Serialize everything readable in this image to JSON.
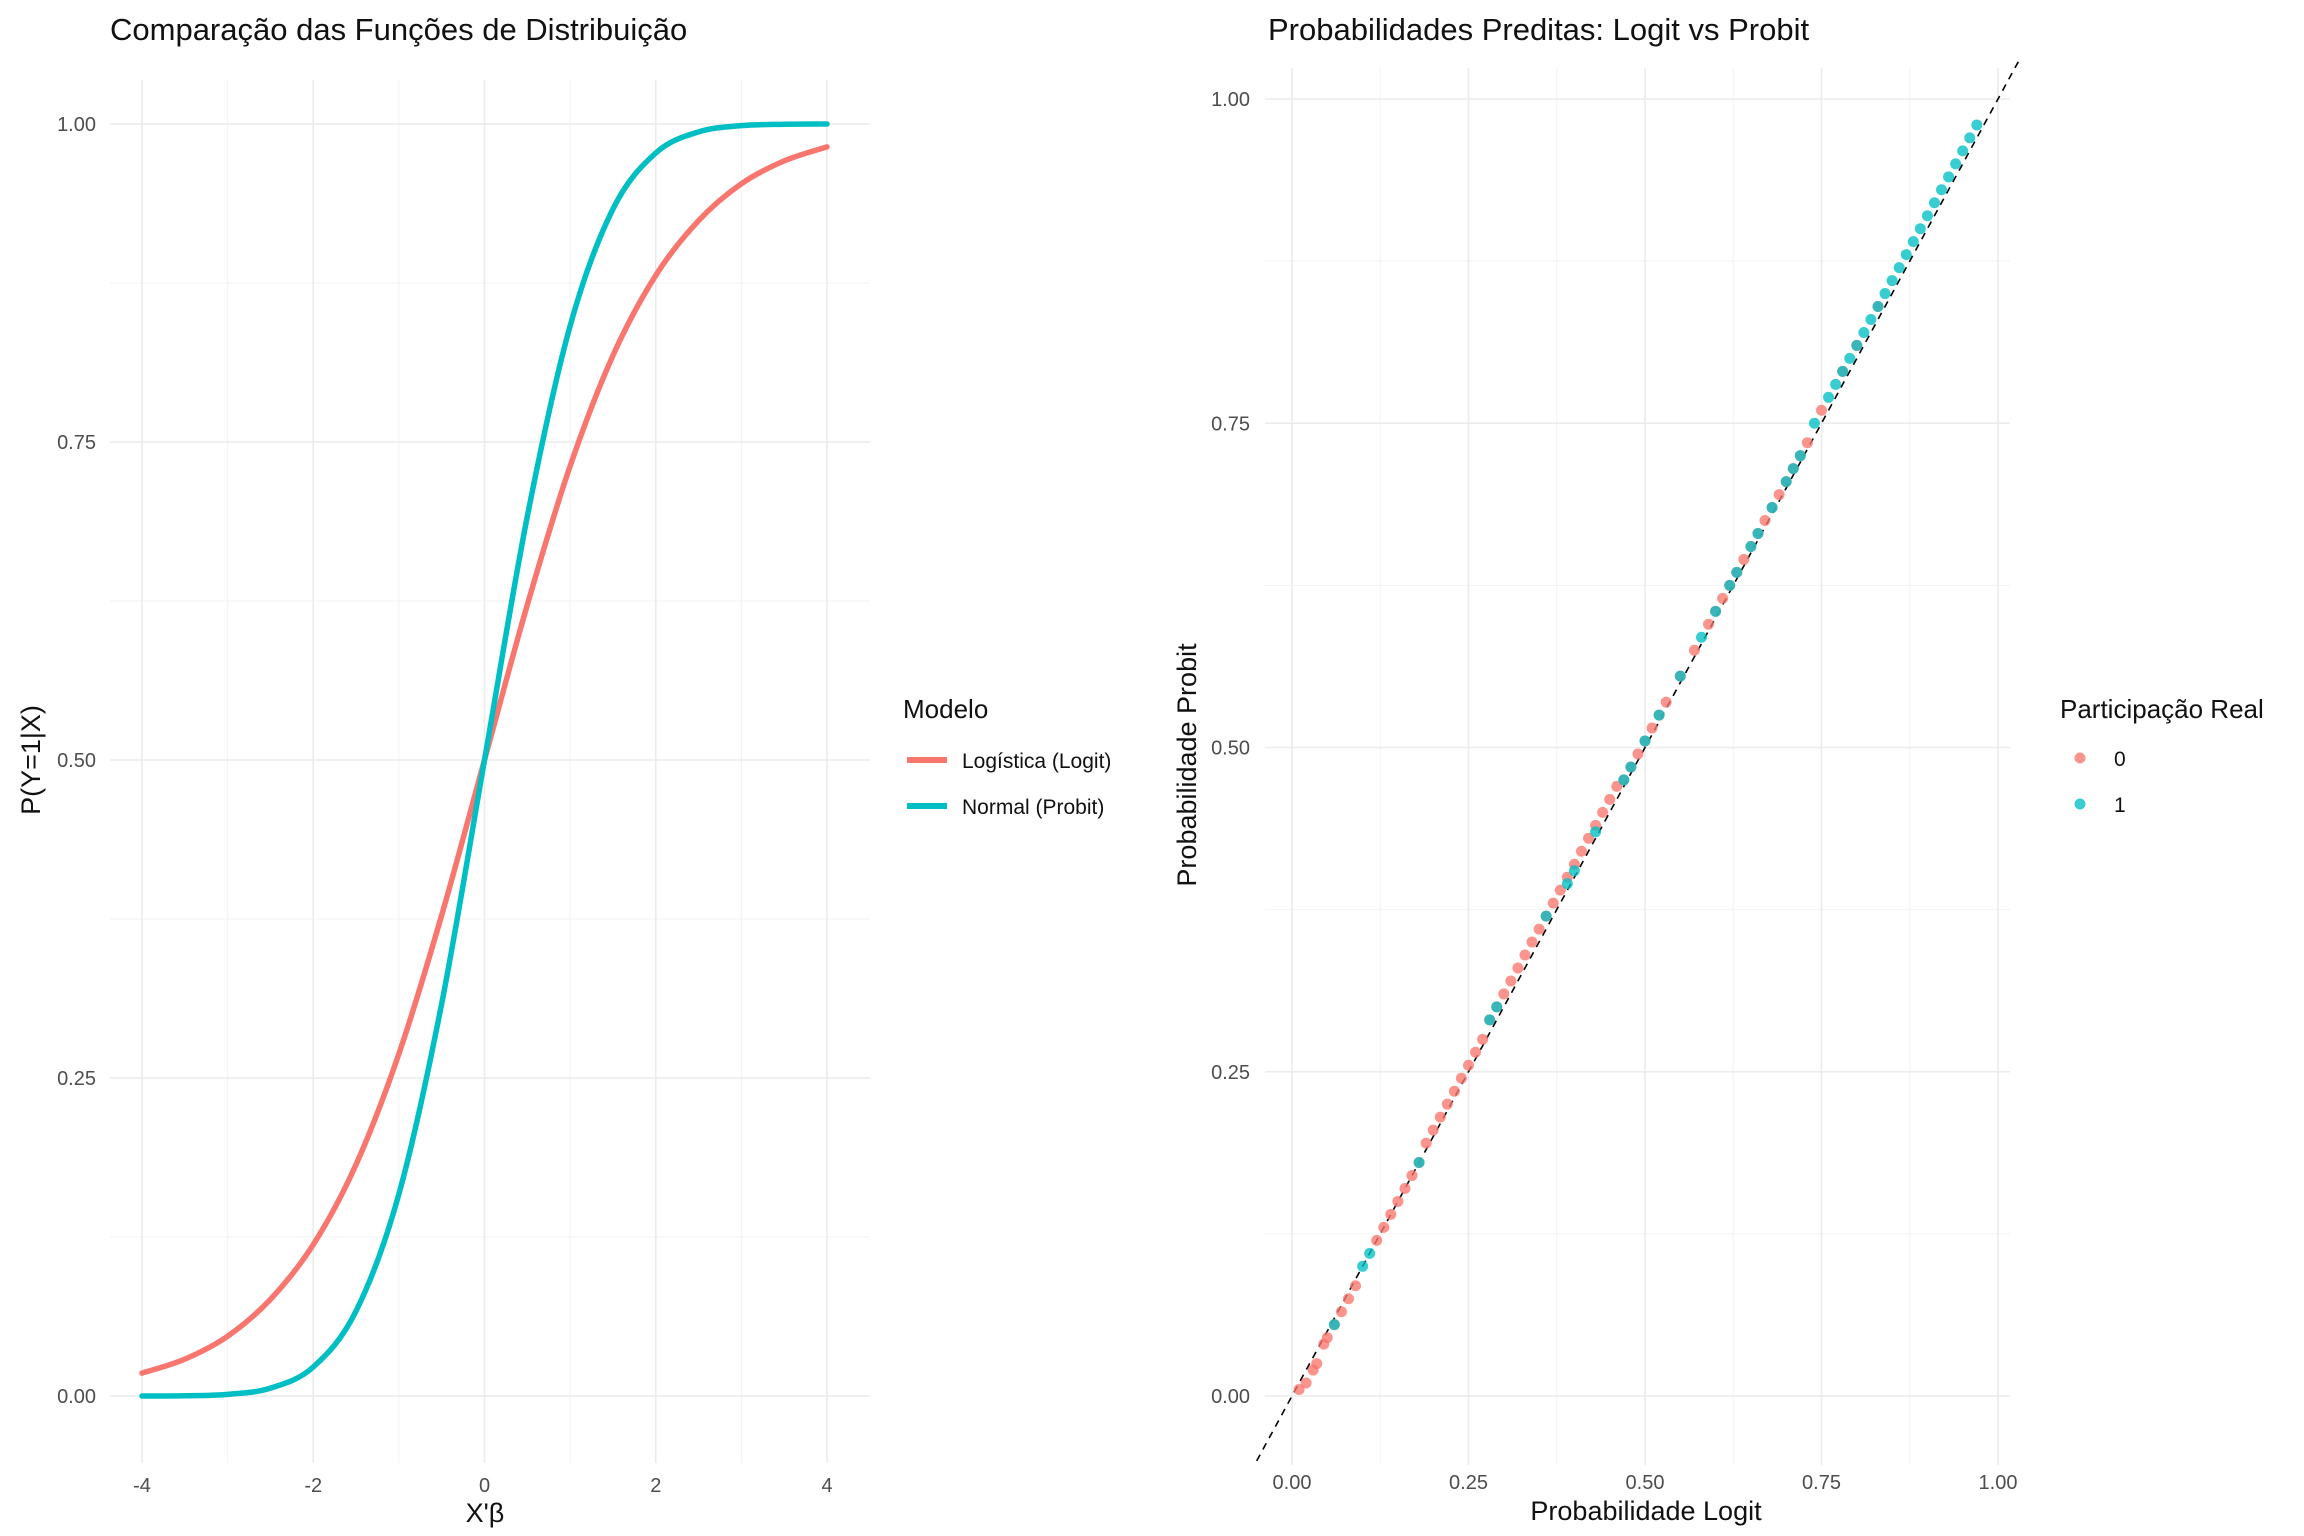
{
  "colors": {
    "logit": "#F8766D",
    "probit": "#00BFC4",
    "grid": "#EBEBEB",
    "reference_line": "#000000"
  },
  "chart_data": [
    {
      "type": "line",
      "title": "Comparação das Funções de Distribuição",
      "xlabel": "X'β",
      "ylabel": "P(Y=1|X)",
      "xlim": [
        -4,
        4
      ],
      "ylim": [
        0,
        1
      ],
      "x_ticks": [
        -4,
        -2,
        0,
        2,
        4
      ],
      "x_tick_labels": [
        "-4",
        "-2",
        "0",
        "2",
        "4"
      ],
      "y_ticks": [
        0,
        0.25,
        0.5,
        0.75,
        1
      ],
      "y_tick_labels": [
        "0.00",
        "0.25",
        "0.50",
        "0.75",
        "1.00"
      ],
      "grid": true,
      "legend": {
        "title": "Modelo",
        "position": "right"
      },
      "x": [
        -4,
        -3.5,
        -3,
        -2.5,
        -2,
        -1.5,
        -1,
        -0.5,
        0,
        0.5,
        1,
        1.5,
        2,
        2.5,
        3,
        3.5,
        4
      ],
      "series": [
        {
          "name": "Logística (Logit)",
          "color": "#F8766D",
          "values": [
            0.018,
            0.029,
            0.047,
            0.076,
            0.119,
            0.182,
            0.269,
            0.378,
            0.5,
            0.622,
            0.731,
            0.818,
            0.881,
            0.924,
            0.953,
            0.971,
            0.982
          ]
        },
        {
          "name": "Normal (Probit)",
          "color": "#00BFC4",
          "values": [
            0.0,
            0.0002,
            0.0013,
            0.0062,
            0.0228,
            0.0668,
            0.1587,
            0.3085,
            0.5,
            0.6915,
            0.8413,
            0.9332,
            0.9772,
            0.9938,
            0.9987,
            0.9998,
            1.0
          ]
        }
      ]
    },
    {
      "type": "scatter",
      "title": "Probabilidades Preditas: Logit vs Probit",
      "xlabel": "Probabilidade Logit",
      "ylabel": "Probabilidade Probit",
      "xlim": [
        0,
        1
      ],
      "ylim": [
        0,
        1
      ],
      "x_ticks": [
        0,
        0.25,
        0.5,
        0.75,
        1
      ],
      "x_tick_labels": [
        "0.00",
        "0.25",
        "0.50",
        "0.75",
        "1.00"
      ],
      "y_ticks": [
        0,
        0.25,
        0.5,
        0.75,
        1
      ],
      "y_tick_labels": [
        "0.00",
        "0.25",
        "0.50",
        "0.75",
        "1.00"
      ],
      "grid": true,
      "reference_line": {
        "type": "identity",
        "style": "dashed",
        "color": "#000000"
      },
      "legend": {
        "title": "Participação Real",
        "position": "right"
      },
      "series": [
        {
          "name": "0",
          "color": "#F8766D",
          "points": [
            [
              0.01,
              0.005
            ],
            [
              0.02,
              0.01
            ],
            [
              0.03,
              0.02
            ],
            [
              0.035,
              0.025
            ],
            [
              0.045,
              0.04
            ],
            [
              0.05,
              0.045
            ],
            [
              0.06,
              0.055
            ],
            [
              0.07,
              0.065
            ],
            [
              0.08,
              0.075
            ],
            [
              0.09,
              0.085
            ],
            [
              0.12,
              0.12
            ],
            [
              0.13,
              0.13
            ],
            [
              0.14,
              0.14
            ],
            [
              0.15,
              0.15
            ],
            [
              0.16,
              0.16
            ],
            [
              0.17,
              0.17
            ],
            [
              0.18,
              0.18
            ],
            [
              0.19,
              0.195
            ],
            [
              0.2,
              0.205
            ],
            [
              0.21,
              0.215
            ],
            [
              0.22,
              0.225
            ],
            [
              0.23,
              0.235
            ],
            [
              0.24,
              0.245
            ],
            [
              0.25,
              0.255
            ],
            [
              0.26,
              0.265
            ],
            [
              0.27,
              0.275
            ],
            [
              0.28,
              0.29
            ],
            [
              0.29,
              0.3
            ],
            [
              0.3,
              0.31
            ],
            [
              0.31,
              0.32
            ],
            [
              0.32,
              0.33
            ],
            [
              0.33,
              0.34
            ],
            [
              0.34,
              0.35
            ],
            [
              0.35,
              0.36
            ],
            [
              0.36,
              0.37
            ],
            [
              0.37,
              0.38
            ],
            [
              0.38,
              0.39
            ],
            [
              0.39,
              0.4
            ],
            [
              0.4,
              0.41
            ],
            [
              0.41,
              0.42
            ],
            [
              0.42,
              0.43
            ],
            [
              0.43,
              0.44
            ],
            [
              0.44,
              0.45
            ],
            [
              0.45,
              0.46
            ],
            [
              0.46,
              0.47
            ],
            [
              0.47,
              0.475
            ],
            [
              0.48,
              0.485
            ],
            [
              0.49,
              0.495
            ],
            [
              0.5,
              0.505
            ],
            [
              0.51,
              0.515
            ],
            [
              0.52,
              0.525
            ],
            [
              0.53,
              0.535
            ],
            [
              0.55,
              0.555
            ],
            [
              0.57,
              0.575
            ],
            [
              0.59,
              0.595
            ],
            [
              0.6,
              0.605
            ],
            [
              0.61,
              0.615
            ],
            [
              0.62,
              0.625
            ],
            [
              0.63,
              0.635
            ],
            [
              0.64,
              0.645
            ],
            [
              0.65,
              0.655
            ],
            [
              0.66,
              0.665
            ],
            [
              0.67,
              0.675
            ],
            [
              0.68,
              0.685
            ],
            [
              0.69,
              0.695
            ],
            [
              0.7,
              0.705
            ],
            [
              0.71,
              0.715
            ],
            [
              0.72,
              0.725
            ],
            [
              0.73,
              0.735
            ],
            [
              0.75,
              0.76
            ],
            [
              0.78,
              0.79
            ],
            [
              0.8,
              0.81
            ],
            [
              0.83,
              0.84
            ]
          ]
        },
        {
          "name": "1",
          "color": "#00BFC4",
          "points": [
            [
              0.06,
              0.055
            ],
            [
              0.1,
              0.1
            ],
            [
              0.11,
              0.11
            ],
            [
              0.18,
              0.18
            ],
            [
              0.28,
              0.29
            ],
            [
              0.29,
              0.3
            ],
            [
              0.36,
              0.37
            ],
            [
              0.39,
              0.395
            ],
            [
              0.4,
              0.405
            ],
            [
              0.43,
              0.435
            ],
            [
              0.47,
              0.475
            ],
            [
              0.48,
              0.485
            ],
            [
              0.5,
              0.505
            ],
            [
              0.52,
              0.525
            ],
            [
              0.55,
              0.555
            ],
            [
              0.58,
              0.585
            ],
            [
              0.6,
              0.605
            ],
            [
              0.62,
              0.625
            ],
            [
              0.63,
              0.635
            ],
            [
              0.65,
              0.655
            ],
            [
              0.66,
              0.665
            ],
            [
              0.68,
              0.685
            ],
            [
              0.7,
              0.705
            ],
            [
              0.71,
              0.715
            ],
            [
              0.72,
              0.725
            ],
            [
              0.74,
              0.75
            ],
            [
              0.76,
              0.77
            ],
            [
              0.77,
              0.78
            ],
            [
              0.78,
              0.79
            ],
            [
              0.79,
              0.8
            ],
            [
              0.8,
              0.81
            ],
            [
              0.81,
              0.82
            ],
            [
              0.82,
              0.83
            ],
            [
              0.83,
              0.84
            ],
            [
              0.84,
              0.85
            ],
            [
              0.85,
              0.86
            ],
            [
              0.86,
              0.87
            ],
            [
              0.87,
              0.88
            ],
            [
              0.88,
              0.89
            ],
            [
              0.89,
              0.9
            ],
            [
              0.9,
              0.91
            ],
            [
              0.91,
              0.92
            ],
            [
              0.92,
              0.93
            ],
            [
              0.93,
              0.94
            ],
            [
              0.94,
              0.95
            ],
            [
              0.95,
              0.96
            ],
            [
              0.96,
              0.97
            ],
            [
              0.97,
              0.98
            ]
          ]
        }
      ]
    }
  ]
}
